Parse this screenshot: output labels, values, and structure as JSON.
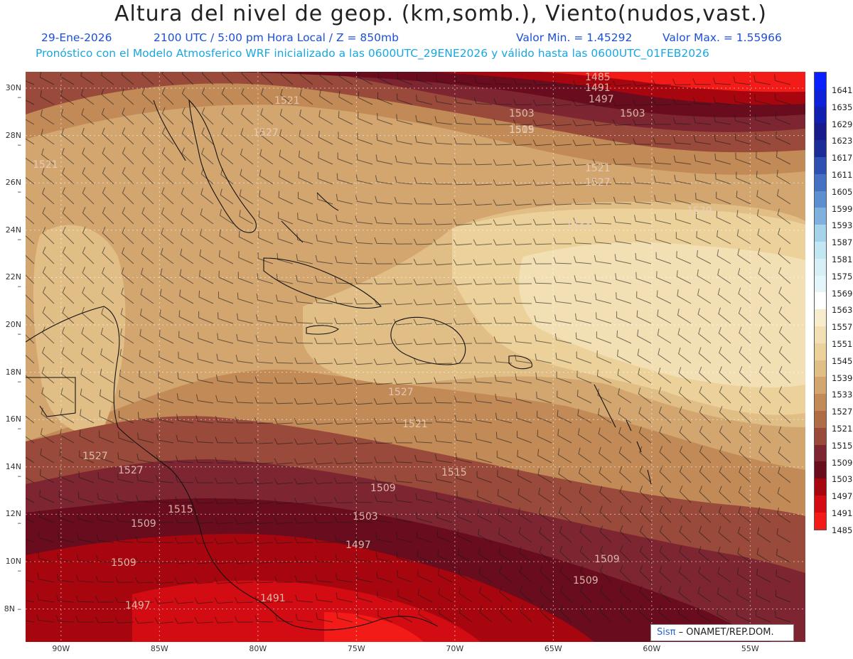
{
  "title": "Altura del nivel de geop. (km,somb.), Viento(nudos,vast.)",
  "subtitle": {
    "date": "29-Ene-2026",
    "time": "2100 UTC / 5:00 pm Hora Local / Z = 850mb",
    "min": "Valor Min. = 1.45292",
    "max": "Valor Max. = 1.55966"
  },
  "subtitle2": "Pronóstico con el Modelo Atmosferico WRF inicializado a las 0600UTC_29ENE2026 y válido hasta las  0600UTC_01FEB2026",
  "axes": {
    "lat": [
      "30N",
      "28N",
      "26N",
      "24N",
      "22N",
      "20N",
      "18N",
      "16N",
      "14N",
      "12N",
      "10N",
      "8N"
    ],
    "lon": [
      "90W",
      "85W",
      "80W",
      "75W",
      "70W",
      "65W",
      "60W",
      "55W"
    ]
  },
  "colorbar": {
    "labels": [
      "1641",
      "1635",
      "1629",
      "1623",
      "1617",
      "1611",
      "1605",
      "1599",
      "1593",
      "1587",
      "1581",
      "1575",
      "1569",
      "1563",
      "1557",
      "1551",
      "1545",
      "1539",
      "1533",
      "1527",
      "1521",
      "1515",
      "1509",
      "1503",
      "1497",
      "1491",
      "1485"
    ],
    "colors": [
      "#0a1fff",
      "#0d22d8",
      "#101fb0",
      "#161a8a",
      "#1c2b9a",
      "#2f4fb2",
      "#4670c2",
      "#5c8fd0",
      "#7fb0de",
      "#a5d3ea",
      "#c3e7f2",
      "#d6f0f6",
      "#e4f6fa",
      "#ffffff",
      "#f7eccb",
      "#f2e0b4",
      "#ecd29a",
      "#e1be85",
      "#d3a670",
      "#c28a56",
      "#b06c45",
      "#9a4a3a",
      "#7d2632",
      "#690c1d",
      "#a8060f",
      "#d20c12",
      "#f21b17"
    ]
  },
  "contour_labels": [
    "1485",
    "1491",
    "1497",
    "1503",
    "1509",
    "1515",
    "1521",
    "1527",
    "1533",
    "1539"
  ],
  "logo": {
    "sis": "Sisπ",
    "org": "– ONAMET/REP.DOM."
  },
  "colors": {
    "title": "#222222",
    "subtitle_blue": "#1b4fd6",
    "subtitle_cyan": "#1aa7e0"
  }
}
